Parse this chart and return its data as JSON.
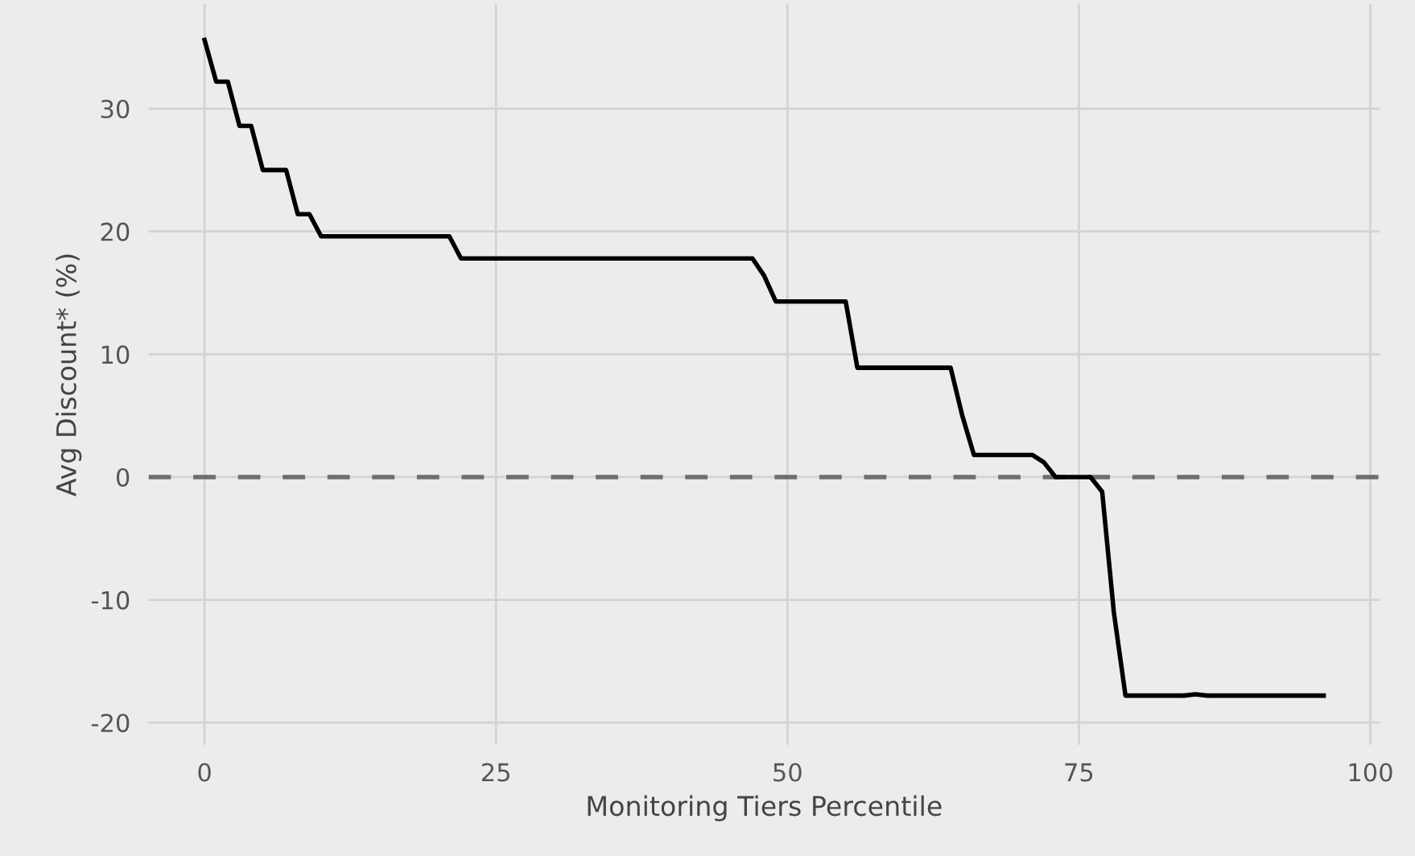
{
  "chart_data": {
    "type": "line",
    "xlabel": "Monitoring Tiers Percentile",
    "ylabel": "Avg Discount* (%)",
    "x": [
      0,
      1,
      2,
      3,
      4,
      5,
      7,
      8,
      9,
      10,
      21,
      22,
      47,
      48,
      49,
      55,
      56,
      64,
      65,
      66,
      71,
      72,
      73,
      76,
      77,
      78,
      79,
      84,
      85,
      86,
      96
    ],
    "series": [
      {
        "color": "#000000",
        "values": [
          35.6,
          32.2,
          32.2,
          28.6,
          28.6,
          25,
          25,
          21.4,
          21.4,
          19.6,
          19.6,
          17.8,
          17.8,
          16.4,
          14.3,
          14.3,
          8.9,
          8.9,
          5,
          1.8,
          1.8,
          1.2,
          0,
          0,
          -1.2,
          -11,
          -17.8,
          -17.8,
          -17.7,
          -17.8,
          -17.8
        ]
      }
    ],
    "xlim": [
      -4.8,
      100.8
    ],
    "xticks": [
      0,
      25,
      50,
      75,
      100
    ],
    "ylim": [
      -21.8,
      38.5
    ],
    "yticks": [
      -20,
      -10,
      0,
      10,
      20,
      30
    ],
    "ref_lines": [
      {
        "axis": "y",
        "value": 0,
        "color": "#6e6e6e",
        "line_style": "dashed"
      }
    ],
    "grid": true,
    "marker": "none",
    "line_style": "solid"
  }
}
